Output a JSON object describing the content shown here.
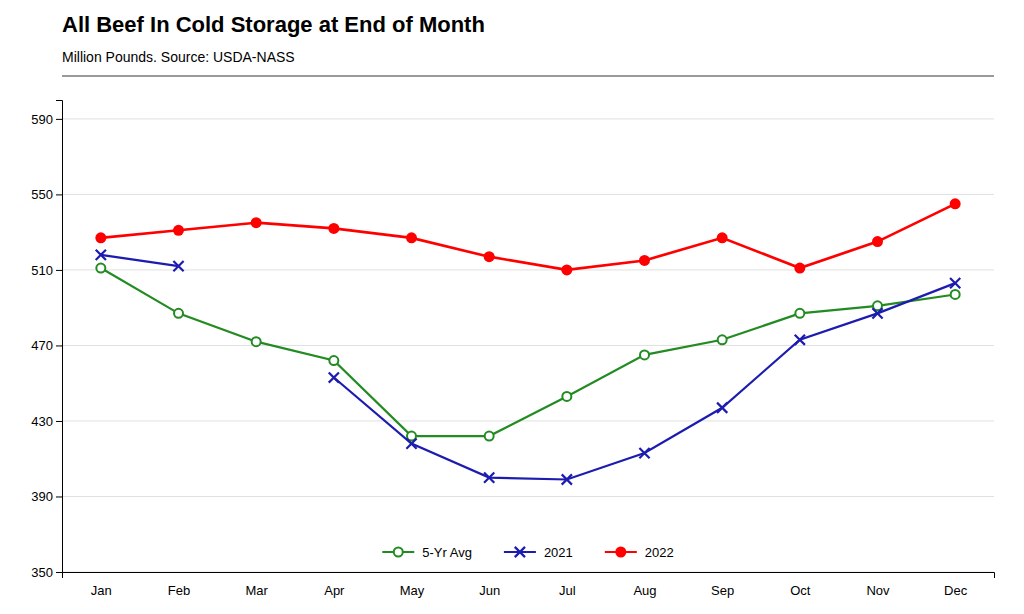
{
  "chart_data": {
    "type": "line",
    "title": "All Beef In Cold Storage at End of Month",
    "subtitle": "Million Pounds.  Source: USDA-NASS",
    "categories": [
      "Jan",
      "Feb",
      "Mar",
      "Apr",
      "May",
      "Jun",
      "Jul",
      "Aug",
      "Sep",
      "Oct",
      "Nov",
      "Dec"
    ],
    "series": [
      {
        "name": "5-Yr Avg",
        "color": "#228B22",
        "marker": "circle-open",
        "values": [
          511,
          487,
          472,
          462,
          422,
          422,
          443,
          465,
          473,
          487,
          491,
          497
        ]
      },
      {
        "name": "2021",
        "color": "#1C1CB0",
        "marker": "x",
        "values": [
          518,
          512,
          null,
          453,
          418,
          400,
          399,
          413,
          437,
          473,
          487,
          503
        ]
      },
      {
        "name": "2022",
        "color": "#FF0000",
        "marker": "circle",
        "values": [
          527,
          531,
          535,
          532,
          527,
          517,
          510,
          515,
          527,
          511,
          525,
          545
        ]
      }
    ],
    "ylim": [
      350,
      600
    ],
    "yticks": [
      350,
      390,
      430,
      470,
      510,
      550,
      590
    ],
    "grid": true,
    "legend": "bottom"
  }
}
